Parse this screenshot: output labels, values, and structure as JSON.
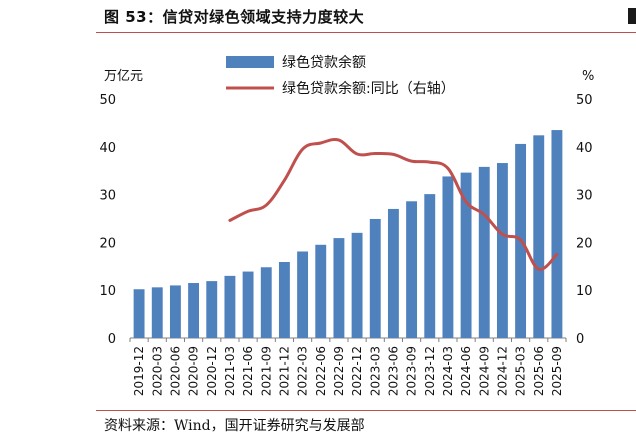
{
  "figure": {
    "title": "图 53：信贷对绿色领域支持力度较大",
    "source": "资料来源：Wind，国开证券研究与发展部"
  },
  "colors": {
    "bar": "#4f81bd",
    "line": "#c0504d",
    "rule": "#c0504d"
  },
  "chart_data": {
    "type": "bar",
    "title": "",
    "left_axis_unit": "万亿元",
    "right_axis_unit": "%",
    "ylim": [
      0,
      50
    ],
    "y2lim": [
      0,
      50
    ],
    "yticks": [
      0,
      10,
      20,
      30,
      40,
      50
    ],
    "y2ticks": [
      0,
      10,
      20,
      30,
      40,
      50
    ],
    "grid": false,
    "legend_position": "top",
    "categories": [
      "2019-12",
      "2020-03",
      "2020-06",
      "2020-09",
      "2020-12",
      "2021-03",
      "2021-06",
      "2021-09",
      "2021-12",
      "2022-03",
      "2022-06",
      "2022-09",
      "2022-12",
      "2023-03",
      "2023-06",
      "2023-09",
      "2023-12",
      "2024-03",
      "2024-06",
      "2024-09",
      "2024-12",
      "2025-03",
      "2025-06",
      "2025-09"
    ],
    "series": [
      {
        "name": "绿色贷款余额",
        "type": "bar",
        "axis": "left",
        "values": [
          10.2,
          10.6,
          11.0,
          11.5,
          11.9,
          13.0,
          13.9,
          14.8,
          15.9,
          18.1,
          19.5,
          20.9,
          22.0,
          24.9,
          27.0,
          28.6,
          30.1,
          33.8,
          34.6,
          35.8,
          36.6,
          40.6,
          42.4,
          43.5
        ]
      },
      {
        "name": "绿色贷款余额:同比（右轴）",
        "type": "line",
        "axis": "right",
        "values": [
          null,
          null,
          null,
          null,
          null,
          24.6,
          26.5,
          27.8,
          33.0,
          39.5,
          40.8,
          41.4,
          38.5,
          38.6,
          38.4,
          37.0,
          36.8,
          35.5,
          28.5,
          25.8,
          21.7,
          20.5,
          14.4,
          17.5
        ]
      }
    ]
  }
}
